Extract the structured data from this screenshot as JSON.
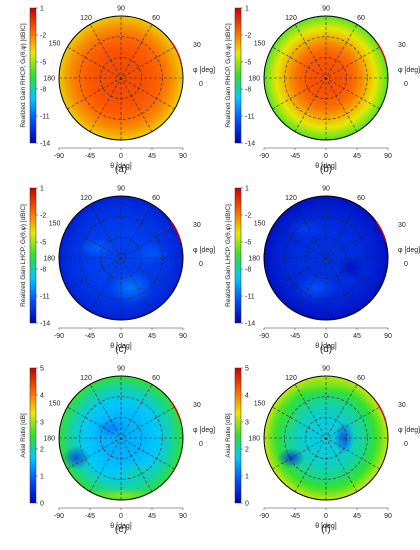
{
  "chart_data": [
    {
      "type": "heatmap",
      "panel_label": "(a)",
      "colorbar": {
        "label": "Realized Gain RHCP, Gᵣ(θ,φ) [dBIC]",
        "ticks": [
          "1",
          "-2",
          "-5",
          "-8",
          "-11",
          "-14"
        ],
        "range": [
          -14,
          1
        ],
        "colors": [
          "#0000b4",
          "#0050ff",
          "#00c8ff",
          "#30e030",
          "#e8e800",
          "#ff6000",
          "#c80000"
        ]
      },
      "phi_label": "φ [deg]",
      "phi_ticks": [
        "0",
        "30",
        "60",
        "90",
        "120",
        "150",
        "180"
      ],
      "theta_label": "θ [deg]",
      "theta_ticks": [
        "-90",
        "-45",
        "0",
        "45",
        "90"
      ],
      "field": {
        "mode": "gain_uniform_high",
        "center_value": -1,
        "edge_value": -3.5
      }
    },
    {
      "type": "heatmap",
      "panel_label": "(b)",
      "colorbar": {
        "label": "Realized Gain RHCP, Gᵣ(θ,φ) [dBIC]",
        "ticks": [
          "1",
          "-2",
          "-5",
          "-8",
          "-11",
          "-14"
        ],
        "range": [
          -14,
          1
        ],
        "colors": [
          "#0000b4",
          "#0050ff",
          "#00c8ff",
          "#30e030",
          "#e8e800",
          "#ff6000",
          "#c80000"
        ]
      },
      "phi_label": "φ [deg]",
      "phi_ticks": [
        "0",
        "30",
        "60",
        "90",
        "120",
        "150",
        "180"
      ],
      "theta_label": "θ [deg]",
      "theta_ticks": [
        "-90",
        "-45",
        "0",
        "45",
        "90"
      ],
      "field": {
        "mode": "gain_falloff",
        "center_value": -1,
        "edge_value": -6
      }
    },
    {
      "type": "heatmap",
      "panel_label": "(c)",
      "colorbar": {
        "label": "Realized Gain LHCP, Gₗ(θ,φ) [dBIC]",
        "ticks": [
          "1",
          "-2",
          "-5",
          "-8",
          "-11",
          "-14"
        ],
        "range": [
          -14,
          1
        ],
        "colors": [
          "#0000b4",
          "#0050ff",
          "#00c8ff",
          "#30e030",
          "#e8e800",
          "#ff6000",
          "#c80000"
        ]
      },
      "phi_label": "φ [deg]",
      "phi_ticks": [
        "0",
        "30",
        "60",
        "90",
        "120",
        "150",
        "180"
      ],
      "theta_label": "θ [deg]",
      "theta_ticks": [
        "-90",
        "-45",
        "0",
        "45",
        "90"
      ],
      "field": {
        "mode": "low_blue",
        "center_value": -12,
        "edge_value": -13
      }
    },
    {
      "type": "heatmap",
      "panel_label": "(d)",
      "colorbar": {
        "label": "Realized Gain LHCP, Gₗ(θ,φ) [dBIC]",
        "ticks": [
          "1",
          "-2",
          "-5",
          "-8",
          "-11",
          "-14"
        ],
        "range": [
          -14,
          1
        ],
        "colors": [
          "#0000b4",
          "#0050ff",
          "#00c8ff",
          "#30e030",
          "#e8e800",
          "#ff6000",
          "#c80000"
        ]
      },
      "phi_label": "φ [deg]",
      "phi_ticks": [
        "0",
        "30",
        "60",
        "90",
        "120",
        "150",
        "180"
      ],
      "theta_label": "θ [deg]",
      "theta_ticks": [
        "-90",
        "-45",
        "0",
        "45",
        "90"
      ],
      "field": {
        "mode": "low_blue_dark",
        "center_value": -12.5,
        "edge_value": -13.5
      }
    },
    {
      "type": "heatmap",
      "panel_label": "(e)",
      "colorbar": {
        "label": "Axial Ratio [dB]",
        "ticks": [
          "5",
          "4",
          "3",
          "2",
          "1",
          "0"
        ],
        "range": [
          0,
          5
        ],
        "colors": [
          "#0000b4",
          "#0050ff",
          "#00c8ff",
          "#30e030",
          "#e8e800",
          "#ff6000",
          "#c80000"
        ]
      },
      "phi_label": "φ [deg]",
      "phi_ticks": [
        "0",
        "30",
        "60",
        "90",
        "120",
        "150",
        "180"
      ],
      "theta_label": "θ [deg]",
      "theta_ticks": [
        "-90",
        "-45",
        "0",
        "45",
        "90"
      ],
      "field": {
        "mode": "axial_cyan",
        "center_value": 1.5,
        "edge_value": 2.5
      }
    },
    {
      "type": "heatmap",
      "panel_label": "(f)",
      "colorbar": {
        "label": "Axial Ratio [dB]",
        "ticks": [
          "5",
          "4",
          "3",
          "2",
          "1",
          "0"
        ],
        "range": [
          0,
          5
        ],
        "colors": [
          "#0000b4",
          "#0050ff",
          "#00c8ff",
          "#30e030",
          "#e8e800",
          "#ff6000",
          "#c80000"
        ]
      },
      "phi_label": "φ [deg]",
      "phi_ticks": [
        "0",
        "30",
        "60",
        "90",
        "120",
        "150",
        "180"
      ],
      "theta_label": "θ [deg]",
      "theta_ticks": [
        "-90",
        "-45",
        "0",
        "45",
        "90"
      ],
      "field": {
        "mode": "axial_green",
        "center_value": 1.8,
        "edge_value": 3.2
      }
    }
  ]
}
